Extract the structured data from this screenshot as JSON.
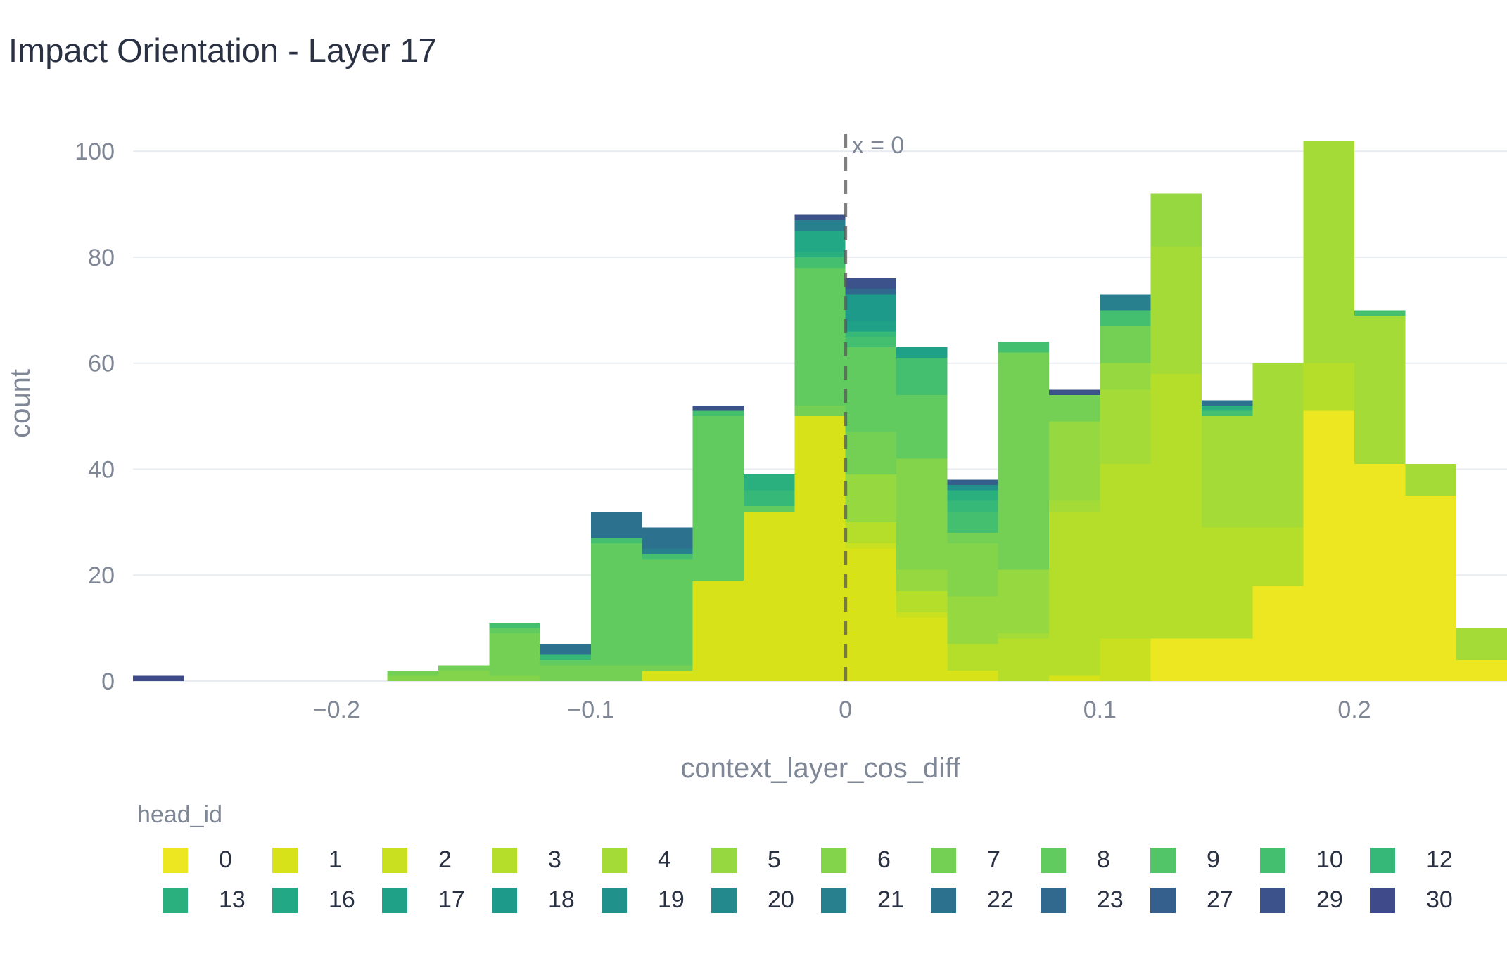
{
  "chart_data": {
    "type": "bar",
    "barmode": "stack",
    "title": "Impact Orientation - Layer 17",
    "xlabel": "context_layer_cos_diff",
    "ylabel": "count",
    "xlim": [
      -0.28,
      0.26
    ],
    "ylim": [
      0,
      104
    ],
    "bin_size": 0.02,
    "x_ticks": [
      -0.2,
      -0.1,
      0,
      0.1,
      0.2
    ],
    "x_tick_labels": [
      "−0.2",
      "−0.1",
      "0",
      "0.1",
      "0.2"
    ],
    "y_ticks": [
      0,
      20,
      40,
      60,
      80,
      100
    ],
    "y_tick_labels": [
      "0",
      "20",
      "40",
      "60",
      "80",
      "100"
    ],
    "grid": true,
    "legend_title": "head_id",
    "legend_position": "bottom",
    "annotation": {
      "x": 0,
      "text": "x = 0",
      "style": "dashed"
    },
    "bin_starts": [
      -0.28,
      -0.18,
      -0.16,
      -0.14,
      -0.12,
      -0.1,
      -0.08,
      -0.06,
      -0.04,
      -0.02,
      0.0,
      0.02,
      0.04,
      0.06,
      0.08,
      0.1,
      0.12,
      0.14,
      0.16,
      0.18,
      0.2,
      0.22,
      0.24
    ],
    "series": [
      {
        "name": "0",
        "color": "#ece720",
        "values": [
          0,
          0,
          0,
          0,
          0,
          0,
          0,
          0,
          0,
          0,
          0,
          0,
          0,
          0,
          0,
          0,
          8,
          8,
          18,
          51,
          41,
          35,
          4
        ]
      },
      {
        "name": "1",
        "color": "#d8e219",
        "values": [
          0,
          0,
          0,
          0,
          0,
          0,
          2,
          19,
          32,
          50,
          25,
          12,
          2,
          0,
          1,
          0,
          0,
          0,
          0,
          0,
          0,
          0,
          0
        ]
      },
      {
        "name": "2",
        "color": "#c8e020",
        "values": [
          0,
          0,
          0,
          0,
          0,
          0,
          0,
          0,
          0,
          0,
          1,
          1,
          0,
          0,
          0,
          8,
          0,
          0,
          0,
          0,
          0,
          0,
          0
        ]
      },
      {
        "name": "3",
        "color": "#b5de2b",
        "values": [
          0,
          0,
          0,
          0,
          0,
          0,
          0,
          0,
          0,
          0,
          4,
          4,
          5,
          8,
          31,
          33,
          50,
          21,
          11,
          9,
          0,
          0,
          0
        ]
      },
      {
        "name": "4",
        "color": "#a5db36",
        "values": [
          0,
          0,
          0,
          0,
          0,
          0,
          0,
          0,
          0,
          0,
          0,
          0,
          0,
          1,
          2,
          14,
          24,
          21,
          31,
          42,
          28,
          6,
          6
        ]
      },
      {
        "name": "5",
        "color": "#95d840",
        "values": [
          0,
          0,
          0,
          0,
          0,
          0,
          0,
          0,
          0,
          0,
          9,
          4,
          9,
          12,
          15,
          5,
          10,
          0,
          0,
          0,
          0,
          0,
          0
        ]
      },
      {
        "name": "6",
        "color": "#84d44b",
        "values": [
          0,
          1,
          2,
          1,
          0,
          0,
          0,
          0,
          0,
          0,
          0,
          21,
          10,
          0,
          0,
          0,
          0,
          0,
          0,
          0,
          0,
          0,
          0
        ]
      },
      {
        "name": "7",
        "color": "#74d055",
        "values": [
          0,
          1,
          1,
          8,
          3,
          3,
          1,
          0,
          0,
          2,
          8,
          0,
          2,
          41,
          5,
          7,
          0,
          0,
          0,
          0,
          0,
          0,
          0
        ]
      },
      {
        "name": "8",
        "color": "#62cb5f",
        "values": [
          0,
          0,
          0,
          1,
          1,
          23,
          20,
          31,
          1,
          26,
          16,
          12,
          0,
          0,
          0,
          0,
          0,
          0,
          0,
          0,
          0,
          0,
          0
        ]
      },
      {
        "name": "9",
        "color": "#52c569",
        "values": [
          0,
          0,
          0,
          0,
          0,
          0,
          0,
          0,
          0,
          0,
          0,
          0,
          0,
          0,
          0,
          0,
          0,
          0,
          0,
          0,
          0,
          0,
          0
        ]
      },
      {
        "name": "10",
        "color": "#44bf70",
        "values": [
          0,
          0,
          0,
          1,
          0,
          1,
          1,
          1,
          0,
          2,
          2,
          7,
          4,
          2,
          0,
          3,
          0,
          1,
          0,
          0,
          1,
          0,
          0
        ]
      },
      {
        "name": "12",
        "color": "#36b878",
        "values": [
          0,
          0,
          0,
          0,
          1,
          0,
          0,
          0,
          3,
          0,
          1,
          0,
          2,
          0,
          0,
          0,
          0,
          0,
          0,
          0,
          0,
          0,
          0
        ]
      },
      {
        "name": "13",
        "color": "#2ab07f",
        "values": [
          0,
          0,
          0,
          0,
          0,
          0,
          0,
          0,
          3,
          1,
          0,
          0,
          2,
          0,
          0,
          0,
          0,
          1,
          0,
          0,
          0,
          0,
          0
        ]
      },
      {
        "name": "16",
        "color": "#22a884",
        "values": [
          0,
          0,
          0,
          0,
          0,
          0,
          0,
          0,
          0,
          4,
          0,
          0,
          0,
          0,
          0,
          0,
          0,
          0,
          0,
          0,
          0,
          0,
          0
        ]
      },
      {
        "name": "17",
        "color": "#1fa187",
        "values": [
          0,
          0,
          0,
          0,
          0,
          0,
          0,
          0,
          0,
          0,
          2,
          2,
          0,
          0,
          0,
          0,
          0,
          0,
          0,
          0,
          0,
          0,
          0
        ]
      },
      {
        "name": "18",
        "color": "#1e9a8a",
        "values": [
          0,
          0,
          0,
          0,
          0,
          0,
          0,
          0,
          0,
          0,
          5,
          0,
          0,
          0,
          0,
          0,
          0,
          0,
          0,
          0,
          0,
          0,
          0
        ]
      },
      {
        "name": "19",
        "color": "#21918c",
        "values": [
          0,
          0,
          0,
          0,
          0,
          0,
          0,
          0,
          0,
          0,
          0,
          0,
          1,
          0,
          0,
          0,
          0,
          0,
          0,
          0,
          0,
          0,
          0
        ]
      },
      {
        "name": "20",
        "color": "#24898d",
        "values": [
          0,
          0,
          0,
          0,
          0,
          0,
          0,
          0,
          0,
          0,
          0,
          0,
          0,
          0,
          0,
          0,
          0,
          0,
          0,
          0,
          0,
          0,
          0
        ]
      },
      {
        "name": "21",
        "color": "#28808e",
        "values": [
          0,
          0,
          0,
          0,
          0,
          0,
          1,
          0,
          0,
          2,
          0,
          0,
          0,
          0,
          0,
          3,
          0,
          0,
          0,
          0,
          0,
          0,
          0
        ]
      },
      {
        "name": "22",
        "color": "#2c728e",
        "values": [
          0,
          0,
          0,
          0,
          2,
          5,
          4,
          0,
          0,
          0,
          0,
          0,
          0,
          0,
          0,
          0,
          0,
          1,
          0,
          0,
          0,
          0,
          0
        ]
      },
      {
        "name": "23",
        "color": "#31688e",
        "values": [
          0,
          0,
          0,
          0,
          0,
          0,
          0,
          0,
          0,
          0,
          1,
          0,
          0,
          0,
          0,
          0,
          0,
          0,
          0,
          0,
          0,
          0,
          0
        ]
      },
      {
        "name": "27",
        "color": "#35608d",
        "values": [
          0,
          0,
          0,
          0,
          0,
          0,
          0,
          0,
          0,
          0,
          0,
          0,
          1,
          0,
          0,
          0,
          0,
          0,
          0,
          0,
          0,
          0,
          0
        ]
      },
      {
        "name": "29",
        "color": "#3b528b",
        "values": [
          0,
          0,
          0,
          0,
          0,
          0,
          0,
          1,
          0,
          1,
          2,
          0,
          0,
          0,
          1,
          0,
          0,
          0,
          0,
          0,
          0,
          0,
          0
        ]
      },
      {
        "name": "30",
        "color": "#3e4a89",
        "values": [
          1,
          0,
          0,
          0,
          0,
          0,
          0,
          0,
          0,
          0,
          0,
          0,
          0,
          0,
          0,
          0,
          0,
          0,
          0,
          0,
          0,
          0,
          0
        ]
      }
    ]
  }
}
